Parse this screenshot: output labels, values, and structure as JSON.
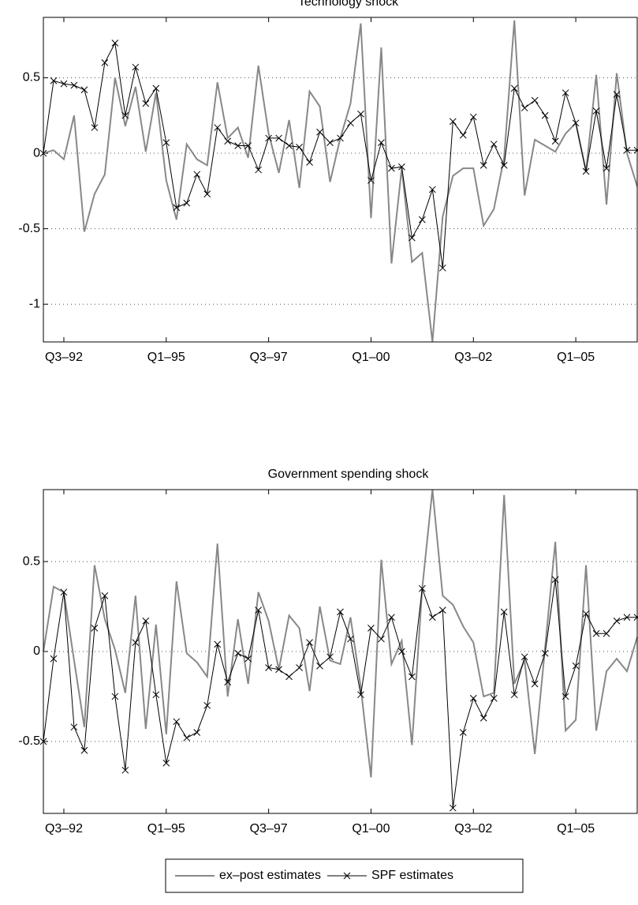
{
  "chart_data": [
    {
      "type": "line",
      "title": "Technology shock",
      "categories": [
        null,
        null,
        "Q3–92",
        null,
        null,
        null,
        null,
        null,
        null,
        null,
        null,
        null,
        "Q1–95",
        null,
        null,
        null,
        null,
        null,
        null,
        null,
        null,
        null,
        "Q3–97",
        null,
        null,
        null,
        null,
        null,
        null,
        null,
        null,
        null,
        "Q1–00",
        null,
        null,
        null,
        null,
        null,
        null,
        null,
        null,
        null,
        "Q3–02",
        null,
        null,
        null,
        null,
        null,
        null,
        null,
        null,
        null,
        "Q1–05",
        null,
        null,
        null,
        null,
        null,
        null
      ],
      "ylim": [
        -1.25,
        0.9
      ],
      "yticks": [
        -1,
        -0.5,
        0,
        0.5
      ],
      "grid": true,
      "series": [
        {
          "name": "ex–post estimates",
          "color": "#888888",
          "marker": "none",
          "values": [
            0.0,
            0.02,
            -0.04,
            0.25,
            -0.52,
            -0.27,
            -0.14,
            0.5,
            0.18,
            0.44,
            0.01,
            0.4,
            -0.18,
            -0.44,
            0.06,
            -0.04,
            -0.08,
            0.47,
            0.1,
            0.17,
            -0.03,
            0.58,
            0.13,
            -0.13,
            0.22,
            -0.23,
            0.41,
            0.31,
            -0.19,
            0.1,
            0.33,
            0.86,
            -0.43,
            0.7,
            -0.73,
            -0.1,
            -0.72,
            -0.66,
            -1.25,
            -0.42,
            -0.15,
            -0.1,
            -0.1,
            -0.48,
            -0.37,
            -0.03,
            0.88,
            -0.28,
            0.09,
            0.05,
            0.01,
            0.13,
            0.2,
            -0.12,
            0.52,
            -0.34,
            0.53,
            0.0,
            -0.22
          ]
        },
        {
          "name": "SPF estimates",
          "color": "#000000",
          "marker": "x",
          "values": [
            0.0,
            0.48,
            0.46,
            0.45,
            0.42,
            0.17,
            0.6,
            0.73,
            0.25,
            0.57,
            0.33,
            0.43,
            0.07,
            -0.36,
            -0.33,
            -0.14,
            -0.27,
            0.17,
            0.08,
            0.05,
            0.05,
            -0.11,
            0.1,
            0.1,
            0.05,
            0.04,
            -0.06,
            0.14,
            0.07,
            0.1,
            0.2,
            0.26,
            -0.18,
            0.07,
            -0.1,
            -0.09,
            -0.56,
            -0.44,
            -0.24,
            -0.76,
            0.21,
            0.12,
            0.24,
            -0.08,
            0.06,
            -0.08,
            0.43,
            0.3,
            0.35,
            0.25,
            0.08,
            0.4,
            0.2,
            -0.12,
            0.28,
            -0.1,
            0.39,
            0.02,
            0.02
          ]
        }
      ]
    },
    {
      "type": "line",
      "title": "Government spending shock",
      "categories": [
        null,
        null,
        "Q3–92",
        null,
        null,
        null,
        null,
        null,
        null,
        null,
        null,
        null,
        "Q1–95",
        null,
        null,
        null,
        null,
        null,
        null,
        null,
        null,
        null,
        "Q3–97",
        null,
        null,
        null,
        null,
        null,
        null,
        null,
        null,
        null,
        "Q1–00",
        null,
        null,
        null,
        null,
        null,
        null,
        null,
        null,
        null,
        "Q3–02",
        null,
        null,
        null,
        null,
        null,
        null,
        null,
        null,
        null,
        "Q1–05",
        null,
        null,
        null,
        null,
        null,
        null
      ],
      "ylim": [
        -0.9,
        0.9
      ],
      "yticks": [
        -0.5,
        0,
        0.5
      ],
      "grid": true,
      "legend": "bottom",
      "series": [
        {
          "name": "ex–post estimates",
          "color": "#888888",
          "marker": "none",
          "values": [
            0.0,
            0.36,
            0.33,
            -0.05,
            -0.42,
            0.48,
            0.18,
            0.01,
            -0.23,
            0.31,
            -0.43,
            0.15,
            -0.46,
            0.39,
            -0.01,
            -0.06,
            -0.14,
            0.6,
            -0.25,
            0.18,
            -0.18,
            0.33,
            0.17,
            -0.1,
            0.2,
            0.13,
            -0.22,
            0.25,
            -0.05,
            -0.07,
            0.19,
            -0.2,
            -0.7,
            0.51,
            -0.07,
            0.06,
            -0.52,
            0.35,
            0.9,
            0.31,
            0.26,
            0.14,
            0.05,
            -0.25,
            -0.23,
            0.87,
            -0.18,
            -0.05,
            -0.57,
            0.02,
            0.61,
            -0.44,
            -0.38,
            0.48,
            -0.44,
            -0.11,
            -0.04,
            -0.11,
            0.08
          ]
        },
        {
          "name": "SPF estimates",
          "color": "#000000",
          "marker": "x",
          "values": [
            -0.5,
            -0.04,
            0.33,
            -0.42,
            -0.55,
            0.13,
            0.31,
            -0.25,
            -0.66,
            0.05,
            0.17,
            -0.24,
            -0.62,
            -0.39,
            -0.48,
            -0.45,
            -0.3,
            0.04,
            -0.17,
            -0.01,
            -0.04,
            0.23,
            -0.09,
            -0.1,
            -0.14,
            -0.09,
            0.05,
            -0.08,
            -0.03,
            0.22,
            0.07,
            -0.24,
            0.13,
            0.07,
            0.19,
            0.0,
            -0.14,
            0.35,
            0.19,
            0.23,
            -0.87,
            -0.45,
            -0.26,
            -0.37,
            -0.26,
            0.22,
            -0.24,
            -0.03,
            -0.18,
            -0.01,
            0.4,
            -0.25,
            -0.08,
            0.21,
            0.1,
            0.1,
            0.17,
            0.19,
            0.19
          ]
        }
      ]
    }
  ]
}
